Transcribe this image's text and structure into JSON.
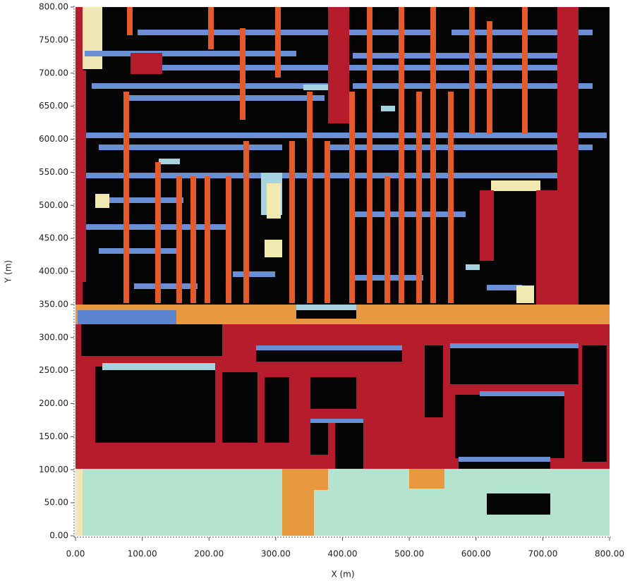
{
  "chart_data": {
    "type": "raster",
    "xlabel": "X (m)",
    "ylabel": "Y (m)",
    "xlim": [
      0,
      800
    ],
    "ylim": [
      0,
      800
    ],
    "xticks": [
      {
        "value": 0,
        "label": "0.00"
      },
      {
        "value": 100,
        "label": "100.00"
      },
      {
        "value": 200,
        "label": "200.00"
      },
      {
        "value": 300,
        "label": "300.00"
      },
      {
        "value": 400,
        "label": "400.00"
      },
      {
        "value": 500,
        "label": "500.00"
      },
      {
        "value": 600,
        "label": "600.00"
      },
      {
        "value": 700,
        "label": "700.00"
      },
      {
        "value": 800,
        "label": "800.00"
      }
    ],
    "yticks": [
      {
        "value": 0,
        "label": "0.00"
      },
      {
        "value": 50,
        "label": "50.00"
      },
      {
        "value": 100,
        "label": "100.00"
      },
      {
        "value": 150,
        "label": "150.00"
      },
      {
        "value": 200,
        "label": "200.00"
      },
      {
        "value": 250,
        "label": "250.00"
      },
      {
        "value": 300,
        "label": "300.00"
      },
      {
        "value": 350,
        "label": "350.00"
      },
      {
        "value": 400,
        "label": "400.00"
      },
      {
        "value": 450,
        "label": "450.00"
      },
      {
        "value": 500,
        "label": "500.00"
      },
      {
        "value": 550,
        "label": "550.00"
      },
      {
        "value": 600,
        "label": "600.00"
      },
      {
        "value": 650,
        "label": "650.00"
      },
      {
        "value": 700,
        "label": "700.00"
      },
      {
        "value": 750,
        "label": "750.00"
      },
      {
        "value": 800,
        "label": "800.00"
      }
    ]
  }
}
